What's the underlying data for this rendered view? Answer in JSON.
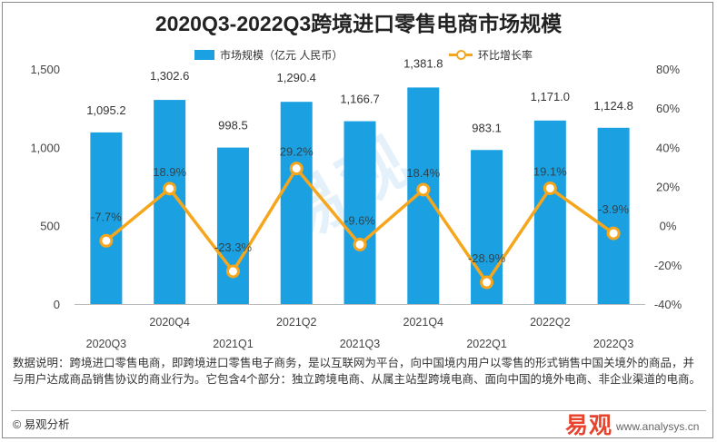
{
  "title": "2020Q3-2022Q3跨境进口零售电商市场规模",
  "legend": {
    "bar_label": "市场规模（亿元 人民币）",
    "line_label": "环比增长率"
  },
  "note": "数据说明：跨境进口零售电商，即跨境进口零售电子商务，是以互联网为平台，向中国境内用户以零售的形式销售中国关境外的商品，并与用户达成商品销售协议的商业行为。它包含4个部分：独立跨境电商、从属主站型跨境电商、面向中国的境外电商、非企业渠道的电商。",
  "source": "© 易观分析",
  "logo": {
    "brand": "易观",
    "url": "www.analysys.cn"
  },
  "colors": {
    "bar": "#1ba1e2",
    "line": "#f5a61d",
    "axis_text": "#444444"
  },
  "chart_data": {
    "type": "bar",
    "categories": [
      "2020Q3",
      "2020Q4",
      "2021Q1",
      "2021Q2",
      "2021Q3",
      "2021Q4",
      "2022Q1",
      "2022Q2",
      "2022Q3"
    ],
    "series": [
      {
        "name": "市场规模（亿元 人民币）",
        "type": "bar",
        "axis": "left",
        "values": [
          1095.2,
          1302.6,
          998.5,
          1290.4,
          1166.7,
          1381.8,
          983.1,
          1171.0,
          1124.8
        ],
        "labels": [
          "1,095.2",
          "1,302.6",
          "998.5",
          "1,290.4",
          "1,166.7",
          "1,381.8",
          "983.1",
          "1,171.0",
          "1,124.8"
        ]
      },
      {
        "name": "环比增长率",
        "type": "line",
        "axis": "right",
        "values": [
          -7.7,
          18.9,
          -23.3,
          29.2,
          -9.6,
          18.4,
          -28.9,
          19.1,
          -3.9
        ],
        "labels": [
          "-7.7%",
          "18.9%",
          "-23.3%",
          "29.2%",
          "-9.6%",
          "18.4%",
          "-28.9%",
          "19.1%",
          "-3.9%"
        ]
      }
    ],
    "y_left": {
      "ylim": [
        0,
        1500
      ],
      "ticks": [
        0,
        500,
        1000,
        1500
      ],
      "tick_labels": [
        "0",
        "500",
        "1,000",
        "1,500"
      ]
    },
    "y_right": {
      "ylim": [
        -40,
        80
      ],
      "ticks": [
        -40,
        -20,
        0,
        20,
        40,
        60,
        80
      ],
      "tick_labels": [
        "-40%",
        "-20%",
        "0%",
        "20%",
        "40%",
        "60%",
        "80%"
      ]
    },
    "grid": false,
    "legend_position": "top"
  }
}
